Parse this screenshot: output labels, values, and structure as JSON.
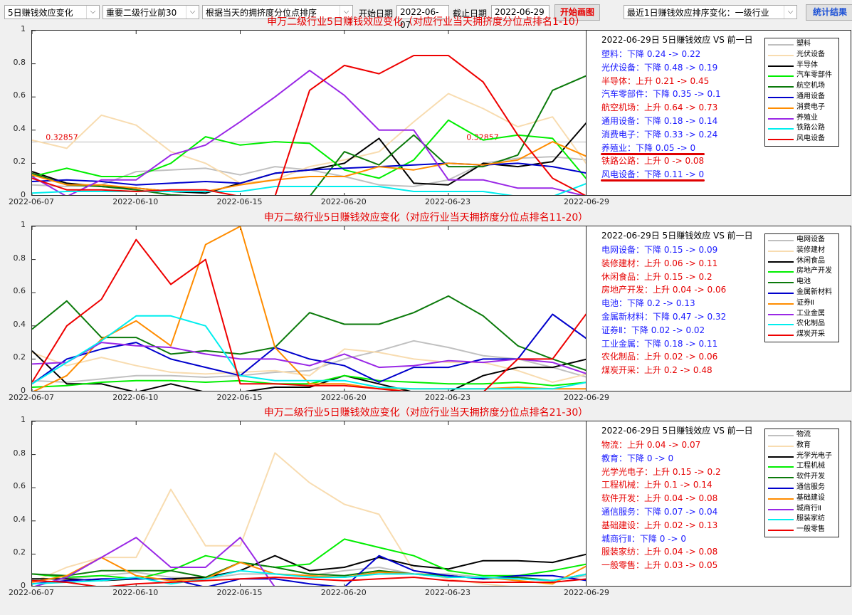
{
  "toolbar": {
    "metric_select": "5日赚钱效应变化",
    "scope_select": "重要二级行业前30",
    "sort_select": "根据当天的拥挤度分位点排序",
    "start_label": "开始日期",
    "start_date": "2022-06-07",
    "end_label": "截止日期",
    "end_date": "2022-06-29",
    "draw_button": "开始画图",
    "recent_select": "最近1日赚钱效应排序变化：一级行业",
    "stats_button": "统计结果"
  },
  "colors": [
    "#c0c0c0",
    "#f8dcb0",
    "#000000",
    "#00ee00",
    "#0b7a0b",
    "#0000cc",
    "#ff8c00",
    "#9a28e6",
    "#00eeee",
    "#ee0000"
  ],
  "x_dates": [
    "2022-06-07",
    "2022-06-08",
    "2022-06-09",
    "2022-06-10",
    "2022-06-13",
    "2022-06-14",
    "2022-06-15",
    "2022-06-16",
    "2022-06-17",
    "2022-06-20",
    "2022-06-21",
    "2022-06-22",
    "2022-06-23",
    "2022-06-24",
    "2022-06-27",
    "2022-06-28",
    "2022-06-29"
  ],
  "x_tick_labels": [
    "2022-06-07",
    "2022-06-10",
    "2022-06-15",
    "2022-06-20",
    "2022-06-23",
    "2022-06-29"
  ],
  "x_tick_idx": [
    0,
    3,
    6,
    9,
    12,
    16
  ],
  "y_ticks": [
    "0",
    "0.2",
    "0.4",
    "0.6",
    "0.8",
    "1"
  ],
  "chart_data": [
    {
      "type": "line",
      "title": "申万二级行业5日赚钱效应变化（对应行业当天拥挤度分位点排名1-10）",
      "ylim": [
        0,
        1
      ],
      "hline": {
        "value": 0.32857,
        "label": "0.32857"
      },
      "info_header": "2022-06-29日 5日赚钱效应 VS 前一日",
      "info_rows": [
        {
          "text": "塑料：下降 0.24 -> 0.22",
          "dir": "down"
        },
        {
          "text": "光伏设备：下降 0.48 -> 0.19",
          "dir": "down"
        },
        {
          "text": "半导体：上升 0.21 -> 0.45",
          "dir": "up"
        },
        {
          "text": "汽车零部件：下降 0.35 -> 0.1",
          "dir": "down"
        },
        {
          "text": "航空机场：上升 0.64 -> 0.73",
          "dir": "up"
        },
        {
          "text": "通用设备：下降 0.18 -> 0.14",
          "dir": "down"
        },
        {
          "text": "消费电子：下降 0.33 -> 0.24",
          "dir": "down"
        },
        {
          "text": "养殖业：下降 0.05 -> 0",
          "dir": "down"
        },
        {
          "text": "铁路公路：上升 0 -> 0.08",
          "dir": "up"
        },
        {
          "text": "风电设备：下降 0.11 -> 0",
          "dir": "down"
        }
      ],
      "series": [
        {
          "name": "塑料",
          "values": [
            0.07,
            0.06,
            0.07,
            0.15,
            0.16,
            0.17,
            0.13,
            0.18,
            0.16,
            0.12,
            0.07,
            0.06,
            0.1,
            0.2,
            0.23,
            0.24,
            0.22
          ]
        },
        {
          "name": "光伏设备",
          "values": [
            0.34,
            0.29,
            0.49,
            0.43,
            0.27,
            0.2,
            0.08,
            0.1,
            0.18,
            0.22,
            0.27,
            0.45,
            0.62,
            0.53,
            0.42,
            0.48,
            0.19
          ]
        },
        {
          "name": "半导体",
          "values": [
            0.15,
            0.08,
            0.06,
            0.05,
            0.03,
            0.02,
            0.08,
            0.14,
            0.16,
            0.2,
            0.35,
            0.08,
            0.07,
            0.2,
            0.18,
            0.21,
            0.45
          ]
        },
        {
          "name": "汽车零部件",
          "values": [
            0.12,
            0.17,
            0.12,
            0.12,
            0.2,
            0.36,
            0.31,
            0.33,
            0.32,
            0.16,
            0.11,
            0.22,
            0.46,
            0.34,
            0.37,
            0.35,
            0.1
          ]
        },
        {
          "name": "航空机场",
          "values": [
            0.14,
            0.07,
            0.06,
            0.04,
            0.01,
            0.0,
            0.0,
            0.0,
            0.0,
            0.27,
            0.19,
            0.37,
            0.18,
            0.18,
            0.25,
            0.64,
            0.73
          ]
        },
        {
          "name": "通用设备",
          "values": [
            0.09,
            0.1,
            0.09,
            0.07,
            0.08,
            0.09,
            0.08,
            0.14,
            0.16,
            0.17,
            0.18,
            0.19,
            0.2,
            0.19,
            0.2,
            0.18,
            0.14
          ]
        },
        {
          "name": "消费电子",
          "values": [
            0.13,
            0.07,
            0.07,
            0.05,
            0.03,
            0.03,
            0.07,
            0.1,
            0.12,
            0.12,
            0.18,
            0.16,
            0.2,
            0.19,
            0.22,
            0.33,
            0.24
          ]
        },
        {
          "name": "养殖业",
          "values": [
            0.12,
            0.0,
            0.1,
            0.1,
            0.25,
            0.31,
            0.45,
            0.6,
            0.76,
            0.61,
            0.4,
            0.4,
            0.1,
            0.1,
            0.05,
            0.05,
            0.0
          ]
        },
        {
          "name": "铁路公路",
          "values": [
            0.02,
            0.03,
            0.03,
            0.03,
            0.03,
            0.03,
            0.03,
            0.06,
            0.06,
            0.06,
            0.06,
            0.03,
            0.03,
            0.03,
            0.0,
            0.0,
            0.08
          ]
        },
        {
          "name": "风电设备",
          "values": [
            0.11,
            0.04,
            0.04,
            0.03,
            0.04,
            0.04,
            0.0,
            0.0,
            0.64,
            0.79,
            0.74,
            0.85,
            0.85,
            0.69,
            0.37,
            0.11,
            0.0
          ]
        }
      ]
    },
    {
      "type": "line",
      "title": "申万二级行业5日赚钱效应变化（对应行业当天拥挤度分位点排名11-20）",
      "ylim": [
        0,
        1
      ],
      "info_header": "2022-06-29日 5日赚钱效应 VS 前一日",
      "info_rows": [
        {
          "text": "电网设备：下降 0.15 -> 0.09",
          "dir": "down"
        },
        {
          "text": "装修建材：上升 0.06 -> 0.11",
          "dir": "up"
        },
        {
          "text": "休闲食品：上升 0.15 -> 0.2",
          "dir": "up"
        },
        {
          "text": "房地产开发：上升 0.04 -> 0.06",
          "dir": "up"
        },
        {
          "text": "电池：下降 0.2 -> 0.13",
          "dir": "down"
        },
        {
          "text": "金属新材料：下降 0.47 -> 0.32",
          "dir": "down"
        },
        {
          "text": "证券Ⅱ：下降 0.02 -> 0.02",
          "dir": "down"
        },
        {
          "text": "工业金属：下降 0.18 -> 0.11",
          "dir": "down"
        },
        {
          "text": "农化制品：上升 0.02 -> 0.06",
          "dir": "up"
        },
        {
          "text": "煤炭开采：上升 0.2 -> 0.48",
          "dir": "up"
        }
      ],
      "series": [
        {
          "name": "电网设备",
          "values": [
            0.07,
            0.06,
            0.08,
            0.1,
            0.1,
            0.09,
            0.1,
            0.12,
            0.13,
            0.2,
            0.25,
            0.31,
            0.27,
            0.22,
            0.2,
            0.15,
            0.09
          ]
        },
        {
          "name": "装修建材",
          "values": [
            0.24,
            0.16,
            0.21,
            0.16,
            0.12,
            0.11,
            0.12,
            0.13,
            0.1,
            0.26,
            0.24,
            0.2,
            0.18,
            0.18,
            0.13,
            0.06,
            0.11
          ]
        },
        {
          "name": "休闲食品",
          "values": [
            0.25,
            0.05,
            0.05,
            0.0,
            0.05,
            0.0,
            0.0,
            0.03,
            0.03,
            0.1,
            0.05,
            0.0,
            0.0,
            0.1,
            0.15,
            0.15,
            0.2
          ]
        },
        {
          "name": "房地产开发",
          "values": [
            0.03,
            0.04,
            0.06,
            0.07,
            0.07,
            0.06,
            0.07,
            0.05,
            0.05,
            0.1,
            0.07,
            0.06,
            0.05,
            0.05,
            0.06,
            0.04,
            0.06
          ]
        },
        {
          "name": "电池",
          "values": [
            0.38,
            0.55,
            0.33,
            0.33,
            0.23,
            0.25,
            0.23,
            0.27,
            0.48,
            0.41,
            0.41,
            0.48,
            0.58,
            0.46,
            0.28,
            0.2,
            0.13
          ]
        },
        {
          "name": "金属新材料",
          "values": [
            0.05,
            0.2,
            0.26,
            0.3,
            0.2,
            0.15,
            0.1,
            0.27,
            0.2,
            0.16,
            0.06,
            0.15,
            0.15,
            0.2,
            0.2,
            0.47,
            0.32
          ]
        },
        {
          "name": "证券Ⅱ",
          "values": [
            0.0,
            0.1,
            0.32,
            0.43,
            0.28,
            0.89,
            1.0,
            0.27,
            0.05,
            0.05,
            0.02,
            0.02,
            0.02,
            0.02,
            0.03,
            0.02,
            0.02
          ]
        },
        {
          "name": "工业金属",
          "values": [
            0.17,
            0.18,
            0.3,
            0.28,
            0.27,
            0.23,
            0.2,
            0.2,
            0.16,
            0.23,
            0.15,
            0.16,
            0.19,
            0.18,
            0.2,
            0.18,
            0.11
          ]
        },
        {
          "name": "农化制品",
          "values": [
            0.05,
            0.18,
            0.31,
            0.46,
            0.46,
            0.4,
            0.1,
            0.07,
            0.07,
            0.07,
            0.03,
            0.02,
            0.02,
            0.02,
            0.02,
            0.02,
            0.06
          ]
        },
        {
          "name": "煤炭开采",
          "values": [
            0.06,
            0.4,
            0.56,
            0.92,
            0.65,
            0.8,
            0.05,
            0.05,
            0.04,
            0.04,
            0.02,
            0.0,
            0.0,
            0.0,
            0.2,
            0.2,
            0.48
          ]
        }
      ]
    },
    {
      "type": "line",
      "title": "申万二级行业5日赚钱效应变化（对应行业当天拥挤度分位点排名21-30）",
      "ylim": [
        0,
        1
      ],
      "info_header": "2022-06-29日 5日赚钱效应 VS 前一日",
      "info_rows": [
        {
          "text": "物流：上升 0.04 -> 0.07",
          "dir": "up"
        },
        {
          "text": "教育：下降 0 -> 0",
          "dir": "down"
        },
        {
          "text": "光学光电子：上升 0.15 -> 0.2",
          "dir": "up"
        },
        {
          "text": "工程机械：上升 0.1 -> 0.14",
          "dir": "up"
        },
        {
          "text": "软件开发：上升 0.04 -> 0.08",
          "dir": "up"
        },
        {
          "text": "通信服务：下降 0.07 -> 0.04",
          "dir": "down"
        },
        {
          "text": "基础建设：上升 0.02 -> 0.13",
          "dir": "up"
        },
        {
          "text": "城商行Ⅱ：下降 0 -> 0",
          "dir": "down"
        },
        {
          "text": "服装家纺：上升 0.04 -> 0.08",
          "dir": "up"
        },
        {
          "text": "一般零售：上升 0.03 -> 0.05",
          "dir": "up"
        }
      ],
      "series": [
        {
          "name": "物流",
          "values": [
            0.05,
            0.05,
            0.07,
            0.09,
            0.06,
            0.05,
            0.08,
            0.08,
            0.07,
            0.1,
            0.12,
            0.08,
            0.08,
            0.06,
            0.05,
            0.04,
            0.07
          ]
        },
        {
          "name": "教育",
          "values": [
            0.03,
            0.12,
            0.18,
            0.18,
            0.59,
            0.25,
            0.25,
            0.81,
            0.63,
            0.5,
            0.44,
            0.1,
            0.05,
            0.02,
            0.0,
            0.0,
            0.0
          ]
        },
        {
          "name": "光学光电子",
          "values": [
            0.05,
            0.05,
            0.04,
            0.05,
            0.05,
            0.06,
            0.1,
            0.19,
            0.1,
            0.12,
            0.18,
            0.13,
            0.11,
            0.16,
            0.16,
            0.15,
            0.2
          ]
        },
        {
          "name": "工程机械",
          "values": [
            0.08,
            0.06,
            0.07,
            0.05,
            0.1,
            0.19,
            0.15,
            0.12,
            0.14,
            0.29,
            0.24,
            0.19,
            0.1,
            0.07,
            0.07,
            0.1,
            0.14
          ]
        },
        {
          "name": "软件开发",
          "values": [
            0.08,
            0.07,
            0.1,
            0.1,
            0.1,
            0.06,
            0.15,
            0.12,
            0.08,
            0.07,
            0.1,
            0.08,
            0.07,
            0.05,
            0.06,
            0.04,
            0.08
          ]
        },
        {
          "name": "通信服务",
          "values": [
            0.02,
            0.04,
            0.05,
            0.05,
            0.05,
            0.0,
            0.05,
            0.05,
            0.02,
            0.0,
            0.19,
            0.1,
            0.07,
            0.05,
            0.07,
            0.07,
            0.04
          ]
        },
        {
          "name": "基础建设",
          "values": [
            0.03,
            0.07,
            0.18,
            0.07,
            0.04,
            0.05,
            0.15,
            0.08,
            0.07,
            0.06,
            0.09,
            0.08,
            0.06,
            0.06,
            0.04,
            0.02,
            0.13
          ]
        },
        {
          "name": "城商行Ⅱ",
          "values": [
            0.0,
            0.06,
            0.18,
            0.3,
            0.12,
            0.12,
            0.3,
            0.0,
            0.0,
            0.0,
            0.0,
            0.0,
            0.0,
            0.0,
            0.0,
            0.0,
            0.0
          ]
        },
        {
          "name": "服装家纺",
          "values": [
            0.02,
            0.03,
            0.04,
            0.06,
            0.02,
            0.05,
            0.1,
            0.08,
            0.06,
            0.06,
            0.08,
            0.08,
            0.06,
            0.06,
            0.05,
            0.04,
            0.08
          ]
        },
        {
          "name": "一般零售",
          "values": [
            0.04,
            0.03,
            0.0,
            0.02,
            0.03,
            0.04,
            0.05,
            0.06,
            0.05,
            0.04,
            0.05,
            0.06,
            0.04,
            0.03,
            0.03,
            0.03,
            0.05
          ]
        }
      ]
    }
  ]
}
